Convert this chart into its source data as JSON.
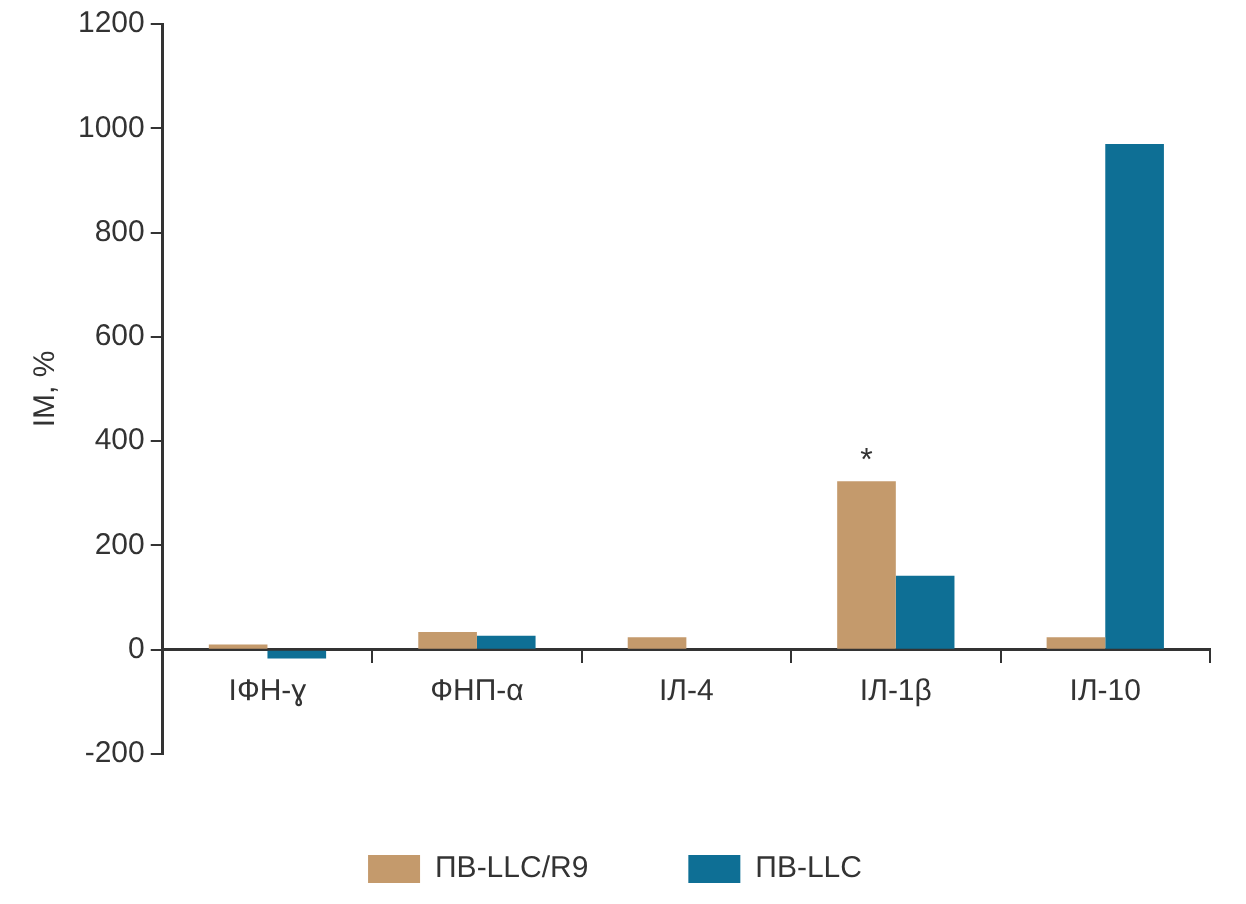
{
  "chart_data": {
    "type": "bar",
    "ylabel": "IM, %",
    "categories": [
      "ІФН-ɣ",
      "ФНП-α",
      "ІЛ-4",
      "ІЛ-1β",
      "ІЛ-10"
    ],
    "series": [
      {
        "name": "ПВ-LLC/R9",
        "color": "#c49a6c",
        "values": [
          10,
          34,
          24,
          323,
          24
        ]
      },
      {
        "name": "ПВ-LLC",
        "color": "#0e6f95",
        "values": [
          -17,
          27,
          0,
          142,
          970
        ]
      }
    ],
    "ylim": [
      -200,
      1200
    ],
    "yticks": [
      -200,
      0,
      200,
      400,
      600,
      800,
      1000,
      1200
    ],
    "grid": false,
    "legend": "bottom",
    "annotations": [
      {
        "text": "*",
        "x": "ІЛ-1β",
        "y": 323
      }
    ]
  }
}
